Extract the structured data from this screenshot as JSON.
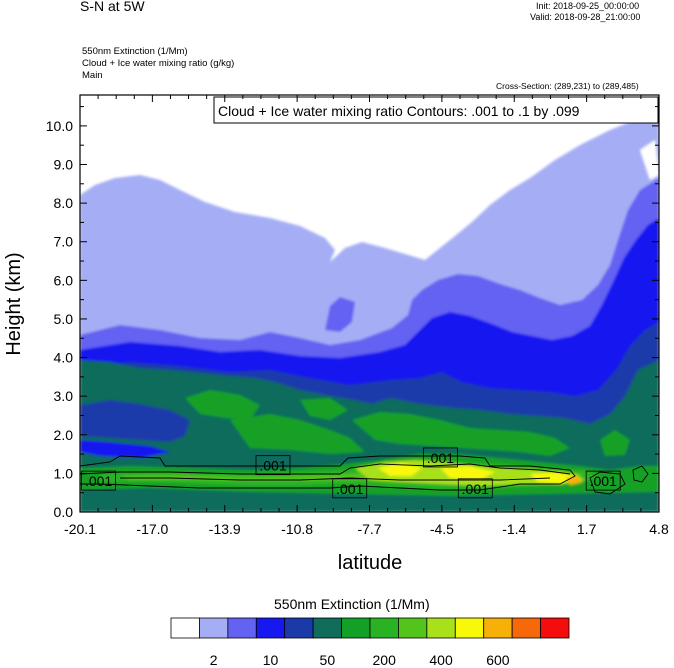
{
  "header": {
    "top_left_title": "S-N at 5W",
    "init": "Init: 2018-09-25_00:00:00",
    "valid": "Valid: 2018-09-28_21:00:00",
    "fields": [
      "550nm Extinction   (1/Mm)",
      "Cloud + Ice water mixing ratio   (g/kg)",
      "Main"
    ],
    "cross_section": "Cross-Section: (289,231) to (289,485)"
  },
  "chart_data": {
    "type": "heatmap",
    "contour_legend": "Cloud + Ice water mixing ratio Contours: .001 to .1 by .099",
    "xlabel": "latitude",
    "ylabel": "Height (km)",
    "xlim": [
      -20.1,
      4.8
    ],
    "ylim": [
      0.0,
      10.8
    ],
    "x_ticks": [
      "-20.1",
      "-17.0",
      "-13.9",
      "-10.8",
      "-7.7",
      "-4.5",
      "-1.4",
      "1.7",
      "4.8"
    ],
    "y_ticks": [
      "0.0",
      "1.0",
      "2.0",
      "3.0",
      "4.0",
      "5.0",
      "6.0",
      "7.0",
      "8.0",
      "9.0",
      "10.0"
    ],
    "contour_labels": [
      {
        "text": ".001",
        "x": -19.3,
        "y": 0.8
      },
      {
        "text": ".001",
        "x": -11.8,
        "y": 1.2
      },
      {
        "text": ".001",
        "x": -8.5,
        "y": 0.6
      },
      {
        "text": ".001",
        "x": -4.6,
        "y": 1.4
      },
      {
        "text": ".001",
        "x": -3.1,
        "y": 0.6
      },
      {
        "text": ".001",
        "x": 2.4,
        "y": 0.8
      }
    ],
    "colorbar": {
      "title": "550nm Extinction  (1/Mm)",
      "colors": [
        "#ffffff",
        "#a5aef5",
        "#6462f2",
        "#1717f0",
        "#1a3aaa",
        "#106c5b",
        "#12a126",
        "#2ab225",
        "#52c41b",
        "#a8e01a",
        "#f8f80a",
        "#f7b008",
        "#f76808",
        "#f50c0c"
      ],
      "labels": [
        "2",
        "10",
        "50",
        "200",
        "400",
        "600"
      ]
    }
  }
}
